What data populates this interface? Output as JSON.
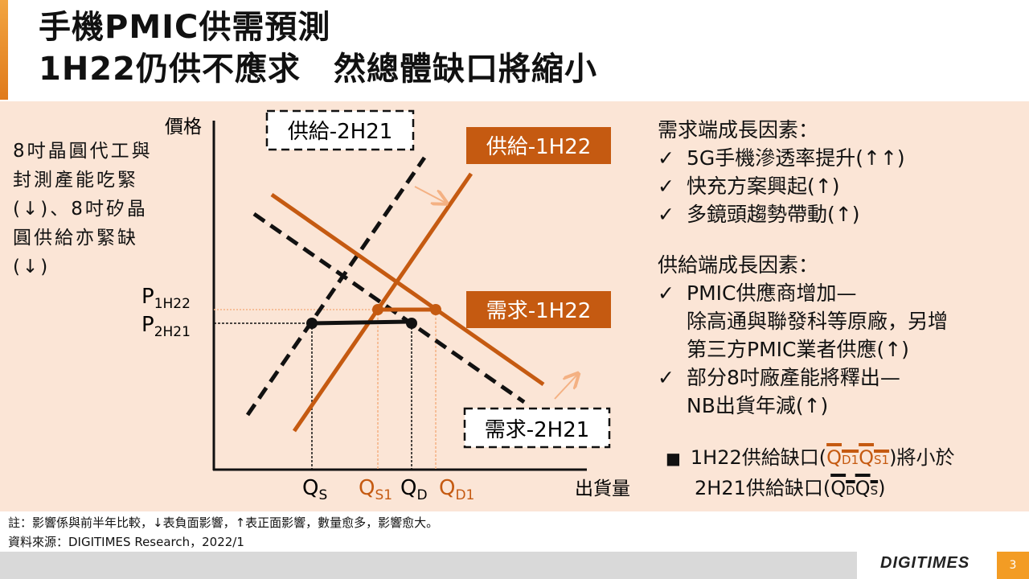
{
  "title": {
    "line1": "手機PMIC供需預測",
    "line2": "1H22仍供不應求　然總體缺口將縮小"
  },
  "left_note": "8吋晶圓代工與封測產能吃緊(↓)、8吋矽晶圓供給亦緊缺(↓)",
  "diagram": {
    "y_axis_label": "價格",
    "x_axis_label": "出貨量",
    "supply_2h21_label": "供給-2H21",
    "supply_1h22_label": "供給-1H22",
    "demand_1h22_label": "需求-1H22",
    "demand_2h21_label": "需求-2H21",
    "p1_main": "P",
    "p1_sub": "1H22",
    "p2_main": "P",
    "p2_sub": "2H21",
    "qs_main": "Q",
    "qs_sub": "S",
    "qs1_main": "Q",
    "qs1_sub": "S1",
    "qd_main": "Q",
    "qd_sub": "D",
    "qd1_main": "Q",
    "qd1_sub": "D1"
  },
  "demand_side": {
    "heading": "需求端成長因素：",
    "items": [
      "5G手機滲透率提升(↑↑)",
      "快充方案興起(↑)",
      "多鏡頭趨勢帶動(↑)"
    ]
  },
  "supply_side": {
    "heading": "供給端成長因素：",
    "item1_line1": "PMIC供應商增加—",
    "item1_line2": "除高通與聯發科等原廠，另增",
    "item1_line3": "第三方PMIC業者供應(↑)",
    "item2_line1": "部分8吋廠產能將釋出—",
    "item2_line2": "NB出貨年減(↑)"
  },
  "conclusion": {
    "bullet": "■",
    "line1_pre": "1H22供給缺口(",
    "line1_post": ")將小於",
    "line2_pre": "2H21供給缺口(",
    "line2_post": ")"
  },
  "check_mark": "✓",
  "footnote": {
    "line1": "註：影響係與前半年比較，↓表負面影響，↑表正面影響，數量愈多，影響愈大。",
    "line2": "資料來源：DIGITIMES Research，2022/1"
  },
  "logo": "DIGITIMES",
  "page_number": "3",
  "colors": {
    "accent": "#c55a11",
    "light_orange": "#f4b183",
    "panel": "#fbe5d6",
    "page_badge": "#f39c24"
  }
}
